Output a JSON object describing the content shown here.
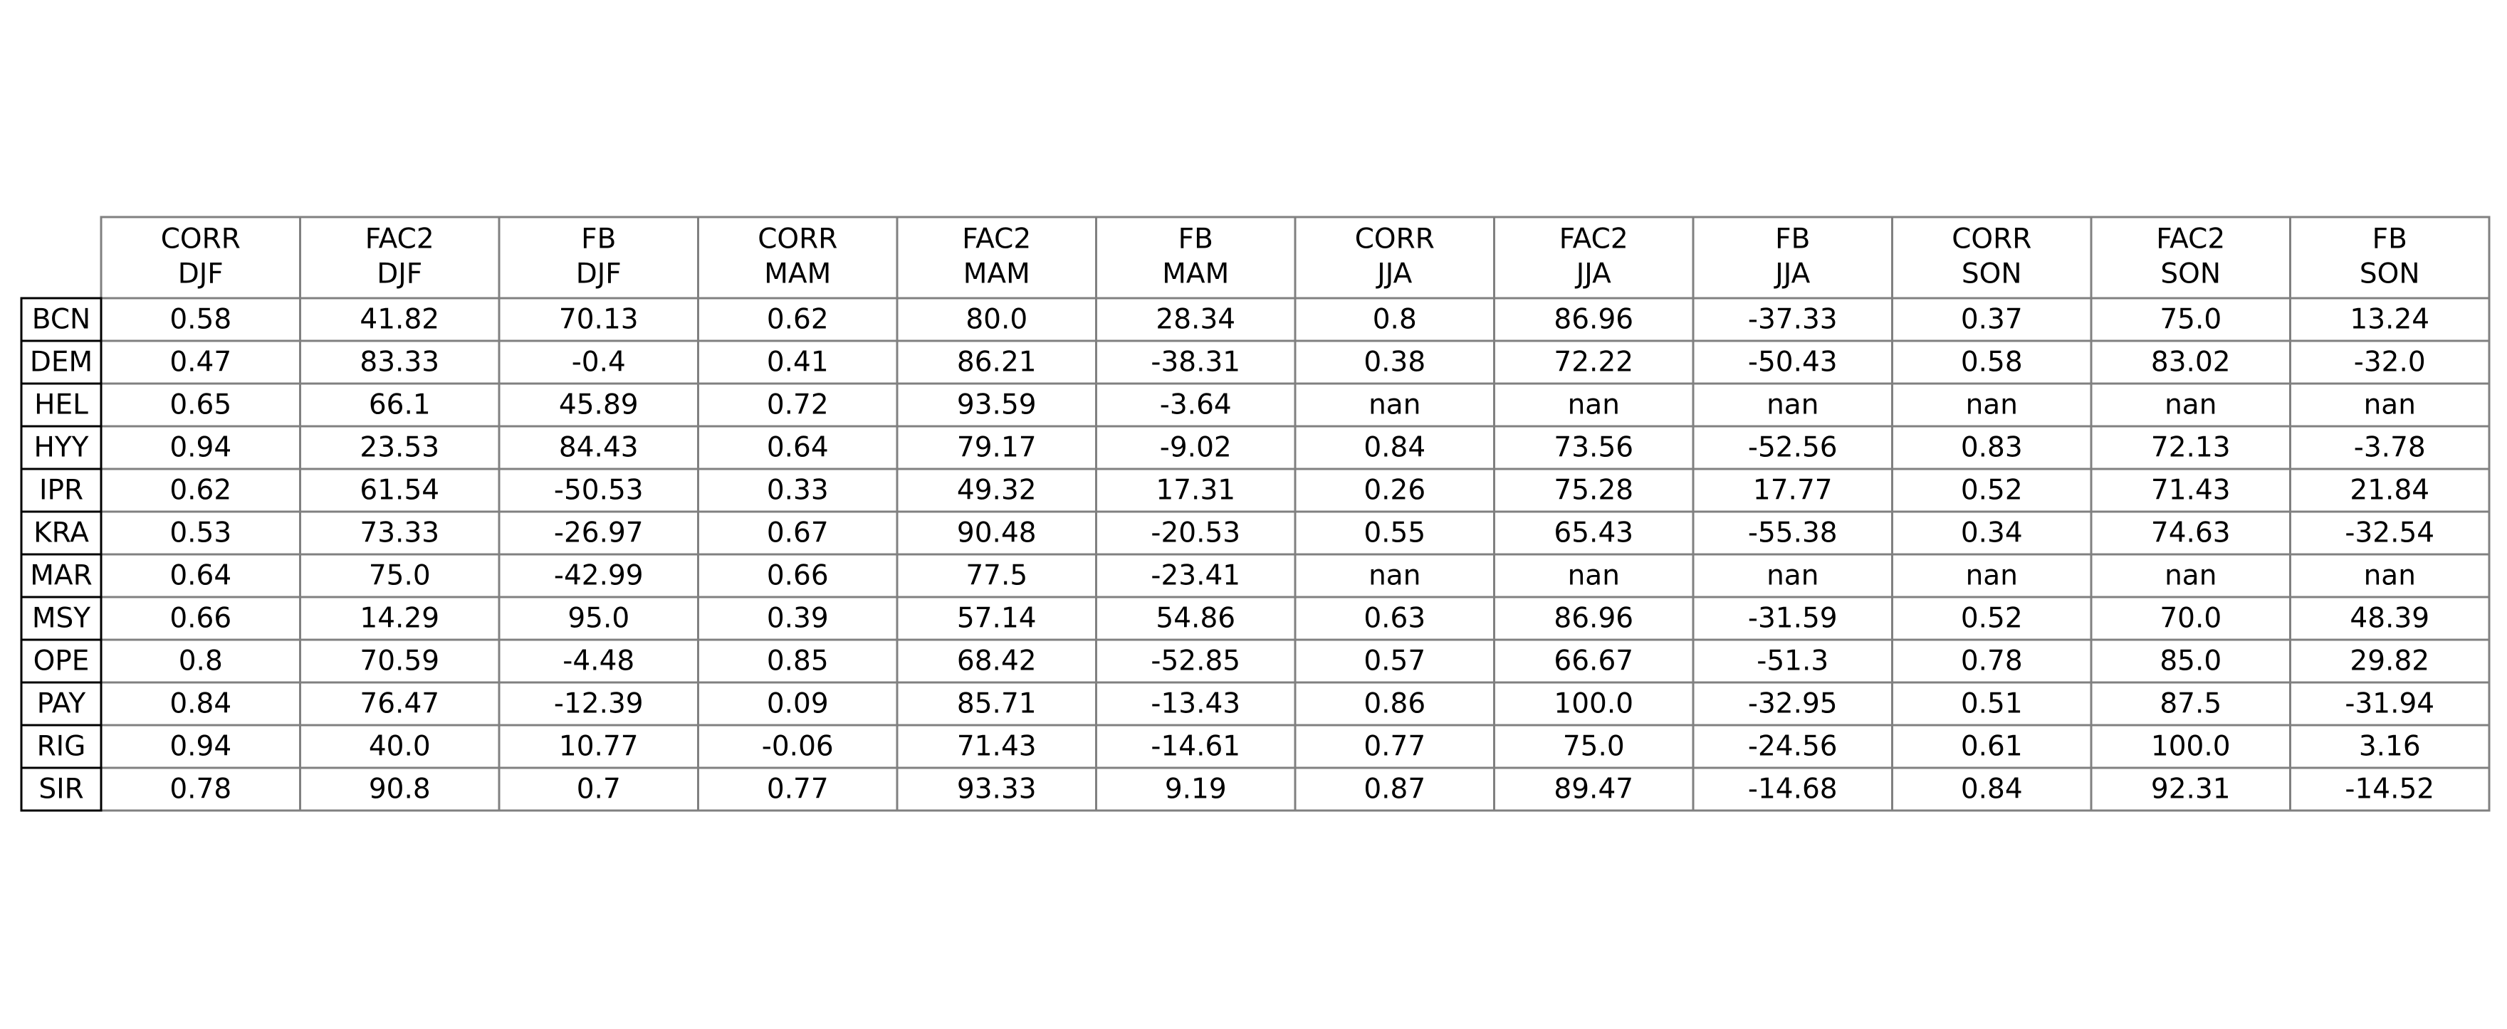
{
  "chart_data": {
    "type": "table",
    "columns": [
      [
        "CORR",
        "DJF"
      ],
      [
        "FAC2",
        "DJF"
      ],
      [
        "FB",
        "DJF"
      ],
      [
        "CORR",
        "MAM"
      ],
      [
        "FAC2",
        "MAM"
      ],
      [
        "FB",
        "MAM"
      ],
      [
        "CORR",
        "JJA"
      ],
      [
        "FAC2",
        "JJA"
      ],
      [
        "FB",
        "JJA"
      ],
      [
        "CORR",
        "SON"
      ],
      [
        "FAC2",
        "SON"
      ],
      [
        "FB",
        "SON"
      ]
    ],
    "row_labels": [
      "BCN",
      "DEM",
      "HEL",
      "HYY",
      "IPR",
      "KRA",
      "MAR",
      "MSY",
      "OPE",
      "PAY",
      "RIG",
      "SIR"
    ],
    "cells": [
      [
        "0.58",
        "41.82",
        "70.13",
        "0.62",
        "80.0",
        "28.34",
        "0.8",
        "86.96",
        "-37.33",
        "0.37",
        "75.0",
        "13.24"
      ],
      [
        "0.47",
        "83.33",
        "-0.4",
        "0.41",
        "86.21",
        "-38.31",
        "0.38",
        "72.22",
        "-50.43",
        "0.58",
        "83.02",
        "-32.0"
      ],
      [
        "0.65",
        "66.1",
        "45.89",
        "0.72",
        "93.59",
        "-3.64",
        "nan",
        "nan",
        "nan",
        "nan",
        "nan",
        "nan"
      ],
      [
        "0.94",
        "23.53",
        "84.43",
        "0.64",
        "79.17",
        "-9.02",
        "0.84",
        "73.56",
        "-52.56",
        "0.83",
        "72.13",
        "-3.78"
      ],
      [
        "0.62",
        "61.54",
        "-50.53",
        "0.33",
        "49.32",
        "17.31",
        "0.26",
        "75.28",
        "17.77",
        "0.52",
        "71.43",
        "21.84"
      ],
      [
        "0.53",
        "73.33",
        "-26.97",
        "0.67",
        "90.48",
        "-20.53",
        "0.55",
        "65.43",
        "-55.38",
        "0.34",
        "74.63",
        "-32.54"
      ],
      [
        "0.64",
        "75.0",
        "-42.99",
        "0.66",
        "77.5",
        "-23.41",
        "nan",
        "nan",
        "nan",
        "nan",
        "nan",
        "nan"
      ],
      [
        "0.66",
        "14.29",
        "95.0",
        "0.39",
        "57.14",
        "54.86",
        "0.63",
        "86.96",
        "-31.59",
        "0.52",
        "70.0",
        "48.39"
      ],
      [
        "0.8",
        "70.59",
        "-4.48",
        "0.85",
        "68.42",
        "-52.85",
        "0.57",
        "66.67",
        "-51.3",
        "0.78",
        "85.0",
        "29.82"
      ],
      [
        "0.84",
        "76.47",
        "-12.39",
        "0.09",
        "85.71",
        "-13.43",
        "0.86",
        "100.0",
        "-32.95",
        "0.51",
        "87.5",
        "-31.94"
      ],
      [
        "0.94",
        "40.0",
        "10.77",
        "-0.06",
        "71.43",
        "-14.61",
        "0.77",
        "75.0",
        "-24.56",
        "0.61",
        "100.0",
        "3.16"
      ],
      [
        "0.78",
        "90.8",
        "0.7",
        "0.77",
        "93.33",
        "9.19",
        "0.87",
        "89.47",
        "-14.68",
        "0.84",
        "92.31",
        "-14.52"
      ]
    ],
    "grid_color": "#808080",
    "row_label_border_color": "#000000"
  }
}
